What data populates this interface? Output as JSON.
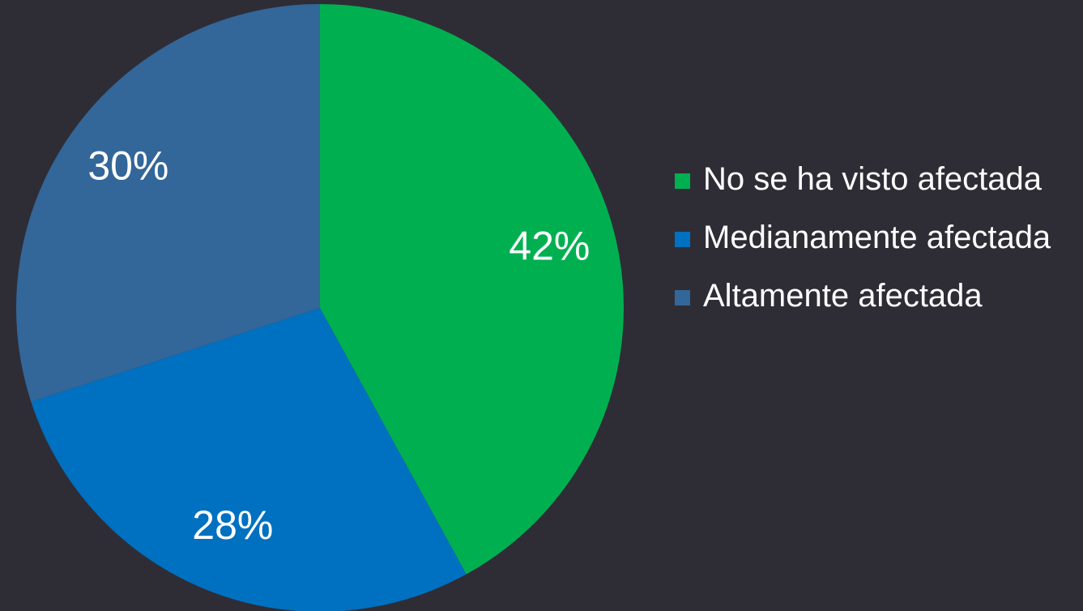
{
  "chart_data": {
    "type": "pie",
    "categories": [
      "No se ha visto afectada",
      "Medianamente afectada",
      "Altamente afectada"
    ],
    "values": [
      42,
      28,
      30
    ],
    "value_labels": [
      "42%",
      "28%",
      "30%"
    ],
    "colors": [
      "#00b050",
      "#0070c0",
      "#336699"
    ],
    "legend": "right"
  }
}
